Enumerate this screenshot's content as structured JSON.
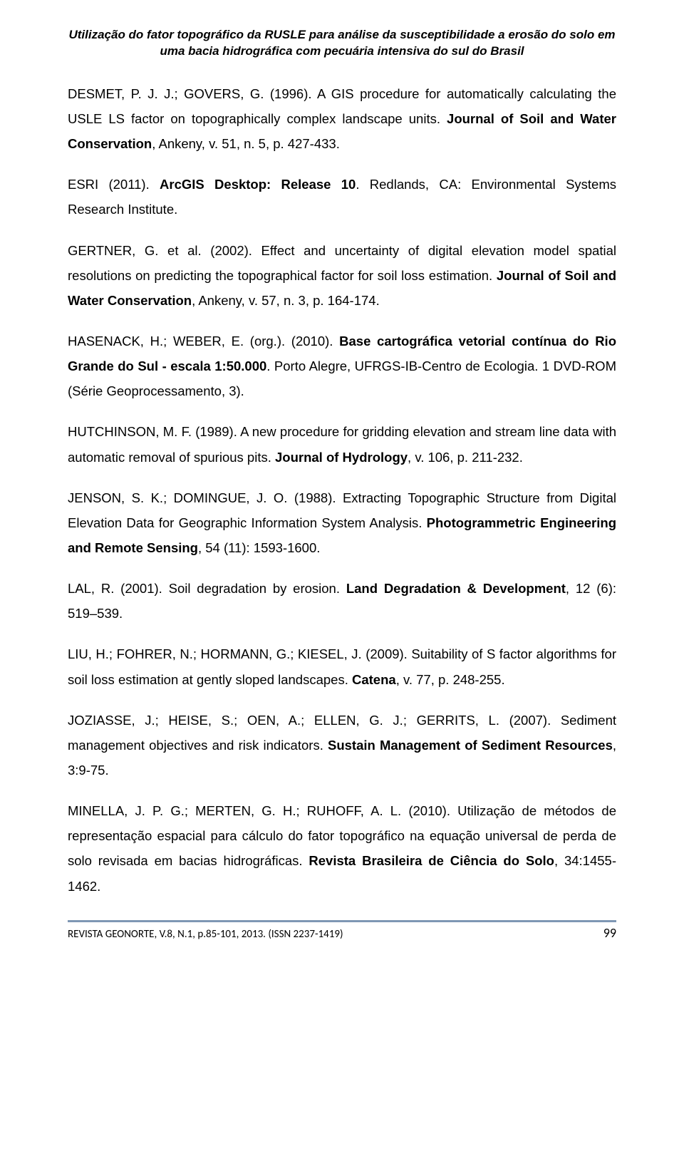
{
  "header": {
    "line1": "Utilização do fator topográfico da RUSLE para análise da susceptibilidade a erosão do solo em",
    "line2": "uma bacia hidrográfica com pecuária intensiva do sul do Brasil"
  },
  "refs": {
    "r1": {
      "a": "DESMET, P. J. J.; GOVERS, G. (1996). A GIS procedure for automatically calculating the USLE LS factor on topographically complex landscape units. ",
      "b": "Journal of Soil and Water Conservation",
      "c": ", Ankeny, v. 51, n. 5, p. 427-433."
    },
    "r2": {
      "a": "ESRI (2011). ",
      "b": "ArcGIS Desktop: Release 10",
      "c": ". Redlands, CA: Environmental Systems Research Institute."
    },
    "r3": {
      "a": "GERTNER, G. et al. (2002). Effect and uncertainty of digital elevation model spatial resolutions on predicting the topographical factor for soil loss estimation. ",
      "b": "Journal of Soil and Water Conservation",
      "c": ", Ankeny, v. 57, n. 3, p. 164-174."
    },
    "r4": {
      "a": "HASENACK, H.; WEBER, E. (org.). (2010). ",
      "b": "Base cartográfica vetorial contínua do Rio Grande do Sul - escala 1:50.000",
      "c": ". Porto Alegre, UFRGS-IB-Centro de Ecologia. 1 DVD-ROM (Série Geoprocessamento, 3)."
    },
    "r5": {
      "a": "HUTCHINSON, M. F. (1989). A new procedure for gridding elevation and stream line data with automatic removal of spurious pits. ",
      "b": "Journal of Hydrology",
      "c": ", v. 106, p. 211-232."
    },
    "r6": {
      "a": "JENSON, S. K.; DOMINGUE, J. O. (1988). Extracting Topographic Structure from Digital Elevation Data for Geographic Information System Analysis. ",
      "b": "Photogrammetric Engineering and Remote Sensing",
      "c": ", 54 (11): 1593-1600."
    },
    "r7": {
      "a": "LAL, R. (2001). Soil degradation by erosion. ",
      "b": "Land Degradation & Development",
      "c": ", 12 (6): 519–539."
    },
    "r8": {
      "a": "LIU, H.; FOHRER, N.; HORMANN, G.; KIESEL, J. (2009). Suitability of S factor algorithms for soil loss estimation at gently sloped landscapes. ",
      "b": "Catena",
      "c": ", v. 77, p. 248-255."
    },
    "r9": {
      "a": "JOZIASSE, J.; HEISE, S.; OEN, A.; ELLEN, G. J.; GERRITS, L. (2007). Sediment management objectives and risk indicators. ",
      "b": "Sustain Management of Sediment Resources",
      "c": ", 3:9-75."
    },
    "r10": {
      "a": "MINELLA, J. P. G.; MERTEN, G. H.; RUHOFF, A. L. (2010). Utilização de métodos de representação espacial para cálculo do fator topográfico na equação universal de perda de solo revisada em bacias hidrográficas. ",
      "b": "Revista Brasileira de Ciência do Solo",
      "c": ", 34:1455-1462."
    }
  },
  "footer": {
    "left": "REVISTA GEONORTE, V.8, N.1, p.85-101, 2013. (ISSN 2237-1419)",
    "pageno": "99"
  }
}
